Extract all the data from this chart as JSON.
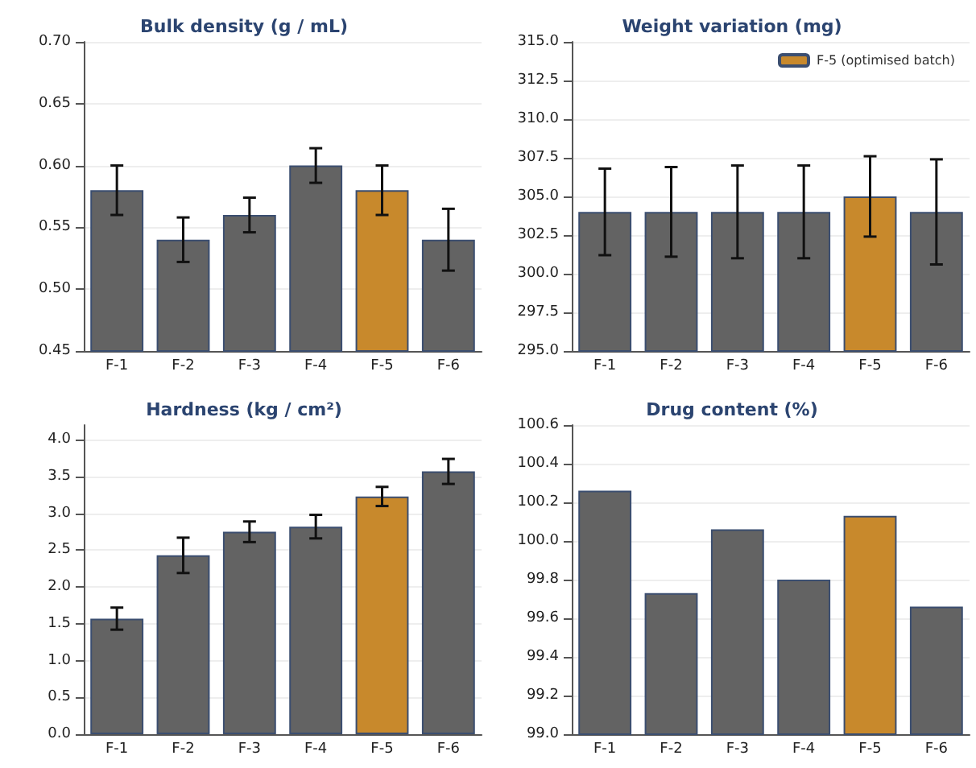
{
  "chart_data": [
    {
      "type": "bar",
      "title": "Bulk density (g / mL)",
      "categories": [
        "F-1",
        "F-2",
        "F-3",
        "F-4",
        "F-5",
        "F-6"
      ],
      "values": [
        0.58,
        0.54,
        0.56,
        0.6,
        0.58,
        0.54
      ],
      "errors": [
        0.02,
        0.018,
        0.014,
        0.014,
        0.02,
        0.025
      ],
      "colors": [
        "#636363",
        "#636363",
        "#636363",
        "#636363",
        "#c8892c",
        "#636363"
      ],
      "ylim": [
        0.45,
        0.7
      ],
      "yticks": [
        {
          "value": 0.45,
          "label": "0.45"
        },
        {
          "value": 0.5,
          "label": "0.50"
        },
        {
          "value": 0.55,
          "label": "0.55"
        },
        {
          "value": 0.6,
          "label": "0.60"
        },
        {
          "value": 0.65,
          "label": "0.65"
        },
        {
          "value": 0.7,
          "label": "0.70"
        }
      ],
      "grid": "y"
    },
    {
      "type": "bar",
      "title": "Weight variation (mg)",
      "categories": [
        "F-1",
        "F-2",
        "F-3",
        "F-4",
        "F-5",
        "F-6"
      ],
      "series": [
        {
          "color": "#636363",
          "values": [
            304,
            304,
            304,
            304,
            null,
            304
          ],
          "errors": [
            2.8,
            2.9,
            3,
            3,
            null,
            3.4
          ]
        },
        {
          "name": "F-5 (optimised batch)",
          "color": "#c8892c",
          "values": [
            null,
            null,
            null,
            null,
            305,
            null
          ],
          "errors": [
            null,
            null,
            null,
            null,
            2.6,
            null
          ]
        }
      ],
      "ylim": [
        295,
        315
      ],
      "yticks": [
        {
          "value": 295,
          "label": "295.0"
        },
        {
          "value": 297.5,
          "label": "297.5"
        },
        {
          "value": 300,
          "label": "300.0"
        },
        {
          "value": 302.5,
          "label": "302.5"
        },
        {
          "value": 305,
          "label": "305.0"
        },
        {
          "value": 307.5,
          "label": "307.5"
        },
        {
          "value": 310,
          "label": "310.0"
        },
        {
          "value": 312.5,
          "label": "312.5"
        },
        {
          "value": 315,
          "label": "315.0"
        }
      ],
      "grid": "y",
      "legend": "top right"
    },
    {
      "type": "bar",
      "title": "Hardness (kg / cm²)",
      "categories": [
        "F-1",
        "F-2",
        "F-3",
        "F-4",
        "F-5",
        "F-6"
      ],
      "values": [
        1.57,
        2.43,
        2.75,
        2.82,
        3.23,
        3.57
      ],
      "errors": [
        0.15,
        0.24,
        0.14,
        0.16,
        0.13,
        0.17
      ],
      "colors": [
        "#636363",
        "#636363",
        "#636363",
        "#636363",
        "#c8892c",
        "#636363"
      ],
      "ylim": [
        0,
        4.2
      ],
      "yticks": [
        {
          "value": 0,
          "label": "0.0"
        },
        {
          "value": 0.5,
          "label": "0.5"
        },
        {
          "value": 1,
          "label": "1.0"
        },
        {
          "value": 1.5,
          "label": "1.5"
        },
        {
          "value": 2,
          "label": "2.0"
        },
        {
          "value": 2.5,
          "label": "2.5"
        },
        {
          "value": 3,
          "label": "3.0"
        },
        {
          "value": 3.5,
          "label": "3.5"
        },
        {
          "value": 4,
          "label": "4.0"
        }
      ],
      "grid": "y"
    },
    {
      "type": "bar",
      "title": "Drug content (%)",
      "categories": [
        "F-1",
        "F-2",
        "F-3",
        "F-4",
        "F-5",
        "F-6"
      ],
      "values": [
        100.26,
        99.73,
        100.06,
        99.8,
        100.13,
        99.66
      ],
      "colors": [
        "#636363",
        "#636363",
        "#636363",
        "#636363",
        "#c8892c",
        "#636363"
      ],
      "ylim": [
        99.0,
        100.6
      ],
      "yticks": [
        {
          "value": 99,
          "label": "99.0"
        },
        {
          "value": 99.2,
          "label": "99.2"
        },
        {
          "value": 99.4,
          "label": "99.4"
        },
        {
          "value": 99.6,
          "label": "99.6"
        },
        {
          "value": 99.8,
          "label": "99.8"
        },
        {
          "value": 100,
          "label": "100.0"
        },
        {
          "value": 100.2,
          "label": "100.2"
        },
        {
          "value": 100.4,
          "label": "100.4"
        },
        {
          "value": 100.6,
          "label": "100.6"
        }
      ],
      "grid": "y"
    }
  ]
}
